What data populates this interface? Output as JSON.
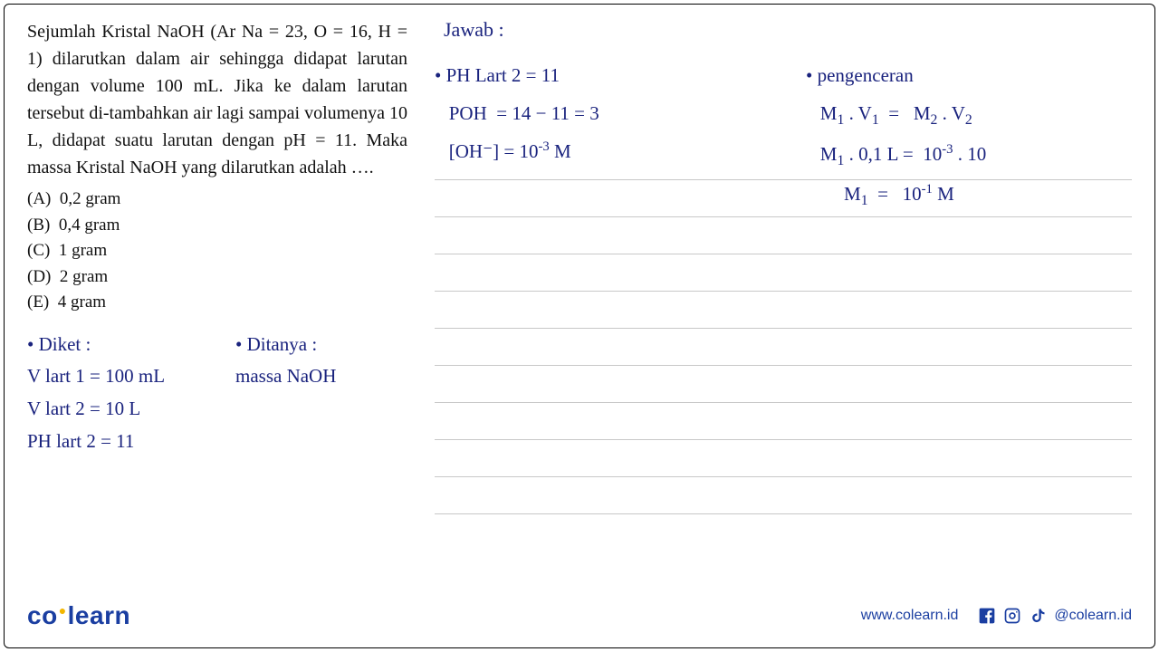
{
  "question": {
    "text_html": "Sejumlah Kristal NaOH (Ar Na = 23, O = 16, H = 1) dilarutkan dalam air sehingga didapat larutan dengan volume 100 mL. Jika ke dalam larutan tersebut di-tambahkan air lagi sampai volumenya 10 L, didapat suatu larutan dengan pH = 11. Maka massa Kristal NaOH yang dilarutkan adalah ….",
    "options": {
      "A": "0,2 gram",
      "B": "0,4 gram",
      "C": "1 gram",
      "D": "2 gram",
      "E": "4 gram"
    }
  },
  "handwriting": {
    "diket_label": "• Diket :",
    "ditanya_label": "• Ditanya :",
    "vlart1": "V lart 1   =  100 mL",
    "vlart2": "V lart  2  =   10 L",
    "phlart2": "PH lart 2 =  11",
    "massa": "massa NaOH",
    "jawab": "Jawab :",
    "left_work": {
      "l1": "•  PH Lart 2 =  11",
      "l2_html": "&nbsp;&nbsp;&nbsp;POH&nbsp;&nbsp;= 14 − 11 = 3",
      "l3_html": "&nbsp;&nbsp;&nbsp;[OH⁻] =  10<sup>-3</sup> M"
    },
    "right_work": {
      "r1": "•  pengenceran",
      "r2_html": "&nbsp;&nbsp;&nbsp;M<sub>1</sub> . V<sub>1</sub>&nbsp;&nbsp;=&nbsp;&nbsp;&nbsp;M<sub>2</sub> . V<sub>2</sub>",
      "r3_html": "&nbsp;&nbsp;&nbsp;M<sub>1</sub> . 0,1 L =&nbsp;&nbsp;10<sup>-3</sup> . 10",
      "r4_html": "&nbsp;&nbsp;&nbsp;&nbsp;&nbsp;&nbsp;&nbsp;&nbsp;M<sub>1</sub>&nbsp;&nbsp;=&nbsp;&nbsp;&nbsp;10<sup>-1</sup> M"
    }
  },
  "footer": {
    "logo_co": "co",
    "logo_learn": "learn",
    "url": "www.colearn.id",
    "handle": "@colearn.id"
  },
  "colors": {
    "ink": "#1a237e",
    "brand": "#1a3ea1",
    "accent": "#f2b600",
    "rule": "#c8c8c8"
  }
}
